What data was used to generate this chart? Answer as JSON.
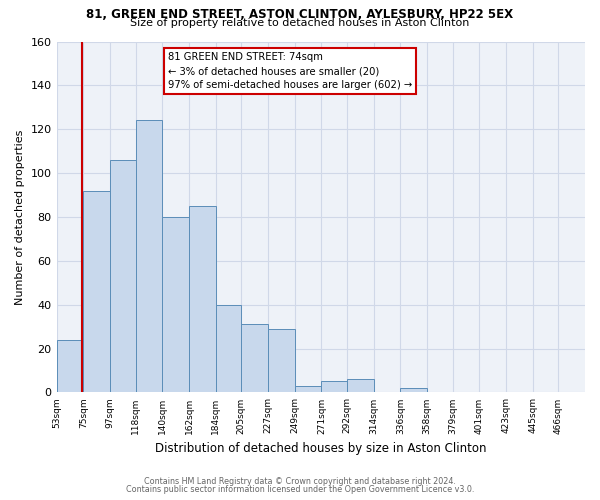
{
  "title1": "81, GREEN END STREET, ASTON CLINTON, AYLESBURY, HP22 5EX",
  "title2": "Size of property relative to detached houses in Aston Clinton",
  "xlabel": "Distribution of detached houses by size in Aston Clinton",
  "ylabel": "Number of detached properties",
  "footer1": "Contains HM Land Registry data © Crown copyright and database right 2024.",
  "footer2": "Contains public sector information licensed under the Open Government Licence v3.0.",
  "bin_edges": [
    53,
    75,
    97,
    118,
    140,
    162,
    184,
    205,
    227,
    249,
    271,
    292,
    314,
    336,
    358,
    379,
    401,
    423,
    445,
    466,
    488
  ],
  "bin_heights": [
    24,
    92,
    106,
    124,
    80,
    85,
    40,
    31,
    29,
    3,
    5,
    6,
    0,
    2,
    0,
    0,
    0,
    0,
    0,
    0
  ],
  "bar_facecolor": "#c8d8ec",
  "bar_edgecolor": "#5b8db8",
  "grid_color": "#d0d8e8",
  "background_color": "#eef2f8",
  "property_line_x": 74,
  "property_line_color": "#cc0000",
  "annotation_line1": "81 GREEN END STREET: 74sqm",
  "annotation_line2": "← 3% of detached houses are smaller (20)",
  "annotation_line3": "97% of semi-detached houses are larger (602) →",
  "annotation_box_edgecolor": "#cc0000",
  "ylim": [
    0,
    160
  ],
  "yticks": [
    0,
    20,
    40,
    60,
    80,
    100,
    120,
    140,
    160
  ]
}
